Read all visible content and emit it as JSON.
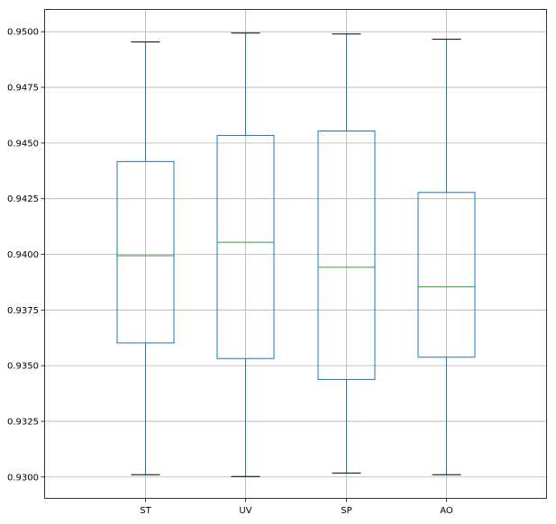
{
  "chart_data": {
    "type": "boxplot",
    "categories": [
      "ST",
      "UV",
      "SP",
      "AO"
    ],
    "boxes": [
      {
        "category": "ST",
        "whisker_low": 0.93008,
        "q1": 0.936,
        "median": 0.93992,
        "q3": 0.94415,
        "whisker_high": 0.94952
      },
      {
        "category": "UV",
        "whisker_low": 0.93,
        "q1": 0.9353,
        "median": 0.94052,
        "q3": 0.94532,
        "whisker_high": 0.94992
      },
      {
        "category": "SP",
        "whisker_low": 0.93016,
        "q1": 0.93436,
        "median": 0.9394,
        "q3": 0.94552,
        "whisker_high": 0.94988
      },
      {
        "category": "AO",
        "whisker_low": 0.93008,
        "q1": 0.93536,
        "median": 0.93852,
        "q3": 0.94276,
        "whisker_high": 0.94964
      }
    ],
    "yticks": [
      "0.9300",
      "0.9325",
      "0.9350",
      "0.9375",
      "0.9400",
      "0.9425",
      "0.9450",
      "0.9475",
      "0.9500"
    ],
    "ylim": [
      0.929,
      0.951
    ],
    "grid": true,
    "colors": {
      "box": "#1f77b4",
      "median": "#2ca02c",
      "cap": "#000000",
      "grid": "#b0b0b0",
      "axis": "#000000"
    }
  }
}
